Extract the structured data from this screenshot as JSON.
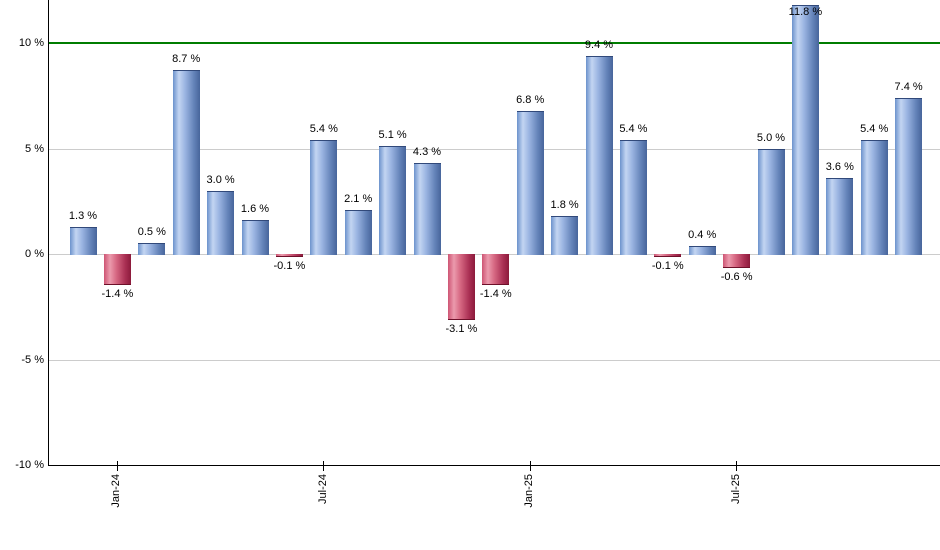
{
  "chart_data": {
    "type": "bar",
    "title": "",
    "xlabel": "",
    "ylabel": "",
    "unit": "%",
    "values": [
      1.3,
      -1.4,
      0.5,
      8.7,
      3.0,
      1.6,
      -0.1,
      5.4,
      2.1,
      5.1,
      4.3,
      -3.1,
      -1.4,
      6.8,
      1.8,
      9.4,
      5.4,
      -0.1,
      0.4,
      -0.6,
      5.0,
      11.8,
      3.6,
      5.4,
      7.4
    ],
    "bar_labels": [
      "1.3 %",
      "-1.4 %",
      "0.5 %",
      "8.7 %",
      "3.0 %",
      "1.6 %",
      "-0.1 %",
      "5.4 %",
      "2.1 %",
      "5.1 %",
      "4.3 %",
      "-3.1 %",
      "-1.4 %",
      "6.8 %",
      "1.8 %",
      "9.4 %",
      "5.4 %",
      "-0.1 %",
      "0.4 %",
      "-0.6 %",
      "5.0 %",
      "11.8 %",
      "3.6 %",
      "5.4 %",
      "7.4 %"
    ],
    "x_ticks": [
      {
        "label": "Jan-24",
        "bar_index": 1
      },
      {
        "label": "Jul-24",
        "bar_index": 7
      },
      {
        "label": "Jan-25",
        "bar_index": 13
      },
      {
        "label": "Jul-25",
        "bar_index": 19
      }
    ],
    "y_ticks": [
      {
        "label": "10 %",
        "value": 10
      },
      {
        "label": "5 %",
        "value": 5
      },
      {
        "label": "0 %",
        "value": 0
      },
      {
        "label": "-5 %",
        "value": -5
      },
      {
        "label": "-10 %",
        "value": -10
      }
    ],
    "ylim": [
      -10,
      12.04
    ],
    "grid": true,
    "legend": false,
    "threshold_line": {
      "value": 10,
      "color": "#007d00"
    },
    "colors": {
      "positive_base": "#7b9fd6",
      "negative_base": "#c44a67",
      "positive_stops": [
        "#6c92cc",
        "#c3d5f2",
        "#9ab4e1",
        "#6382b8",
        "#47659b"
      ],
      "negative_stops": [
        "#ce5473",
        "#eb9aad",
        "#d76983",
        "#aa3054",
        "#8c1a3b"
      ],
      "gridline": "#cccccc",
      "axis": "#000000",
      "label_text": "#000000",
      "background": "#ffffff"
    }
  }
}
